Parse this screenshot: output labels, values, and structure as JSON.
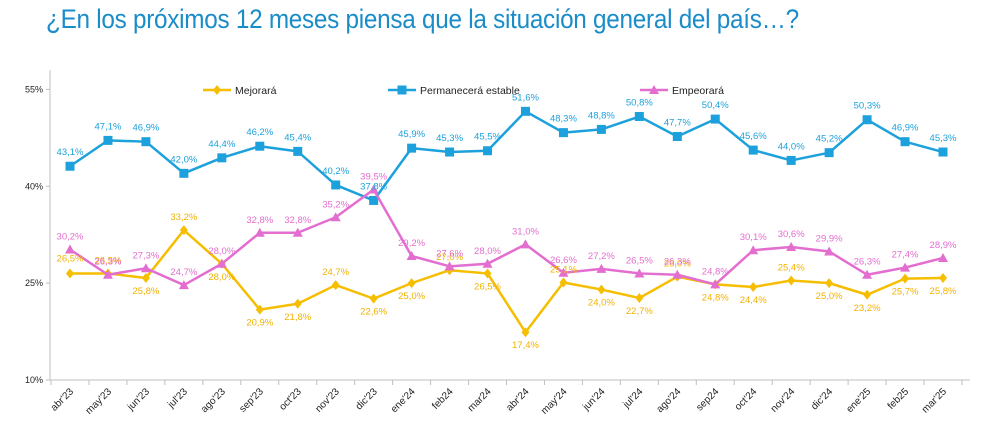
{
  "title": "¿En los próximos 12 meses piensa que la situación general del país…?",
  "chart_data": {
    "type": "line",
    "categories": [
      "abr'23",
      "may'23",
      "jun'23",
      "jul'23",
      "ago'23",
      "sep'23",
      "oct'23",
      "nov'23",
      "dic'23",
      "ene'24",
      "feb24",
      "mar24",
      "abr'24",
      "may'24",
      "jun'24",
      "jul'24",
      "ago'24",
      "sep24",
      "oct'24",
      "nov'24",
      "dic'24",
      "ene'25",
      "feb25",
      "mar'25"
    ],
    "y_ticks": [
      "10%",
      "25%",
      "40%",
      "55%"
    ],
    "ylim": [
      10,
      58
    ],
    "grid": false,
    "legend_position": "top",
    "series": [
      {
        "name": "Mejorará",
        "color": "#F5BE00",
        "marker": "diamond",
        "values": [
          26.5,
          26.5,
          25.8,
          33.2,
          28.0,
          20.9,
          21.8,
          24.7,
          22.6,
          25.0,
          27.0,
          26.5,
          17.4,
          25.1,
          24.0,
          22.7,
          26.0,
          24.8,
          24.4,
          25.4,
          25.0,
          23.2,
          25.7,
          25.8
        ],
        "labels": [
          "26,5%",
          "26,5%",
          "25,8%",
          "33,2%",
          "28,0%",
          "20,9%",
          "21,8%",
          "24,7%",
          "22,6%",
          "25,0%",
          "27,0%",
          "26,5%",
          "17,4%",
          "25,1%",
          "24,0%",
          "22,7%",
          "26,0%",
          "24,8%",
          "24,4%",
          "25,4%",
          "25,0%",
          "23,2%",
          "25,7%",
          "25,8%"
        ]
      },
      {
        "name": "Permanecerá estable",
        "color": "#1DA1DC",
        "marker": "square",
        "values": [
          43.1,
          47.1,
          46.9,
          42.0,
          44.4,
          46.2,
          45.4,
          40.2,
          37.8,
          45.9,
          45.3,
          45.5,
          51.6,
          48.3,
          48.8,
          50.8,
          47.7,
          50.4,
          45.6,
          44.0,
          45.2,
          50.3,
          46.9,
          45.3
        ],
        "labels": [
          "43,1%",
          "47,1%",
          "46,9%",
          "42,0%",
          "44,4%",
          "46,2%",
          "45,4%",
          "40,2%",
          "37,8%",
          "45,9%",
          "45,3%",
          "45,5%",
          "51,6%",
          "48,3%",
          "48,8%",
          "50,8%",
          "47,7%",
          "50,4%",
          "45,6%",
          "44,0%",
          "45,2%",
          "50,3%",
          "46,9%",
          "45,3%"
        ]
      },
      {
        "name": "Empeorará",
        "color": "#E36ED0",
        "marker": "triangle",
        "values": [
          30.2,
          26.3,
          27.3,
          24.7,
          28.0,
          32.8,
          32.8,
          35.2,
          39.5,
          29.2,
          27.6,
          28.0,
          31.0,
          26.6,
          27.2,
          26.5,
          26.3,
          24.8,
          30.1,
          30.6,
          29.9,
          26.3,
          27.4,
          28.9
        ],
        "labels": [
          "30,2%",
          "26,3%",
          "27,3%",
          "24,7%",
          "28,0%",
          "32,8%",
          "32,8%",
          "35,2%",
          "39,5%",
          "29,2%",
          "27,6%",
          "28,0%",
          "31,0%",
          "26,6%",
          "27,2%",
          "26,5%",
          "26,3%",
          "24,8%",
          "30,1%",
          "30,6%",
          "29,9%",
          "26,3%",
          "27,4%",
          "28,9%"
        ]
      }
    ]
  }
}
